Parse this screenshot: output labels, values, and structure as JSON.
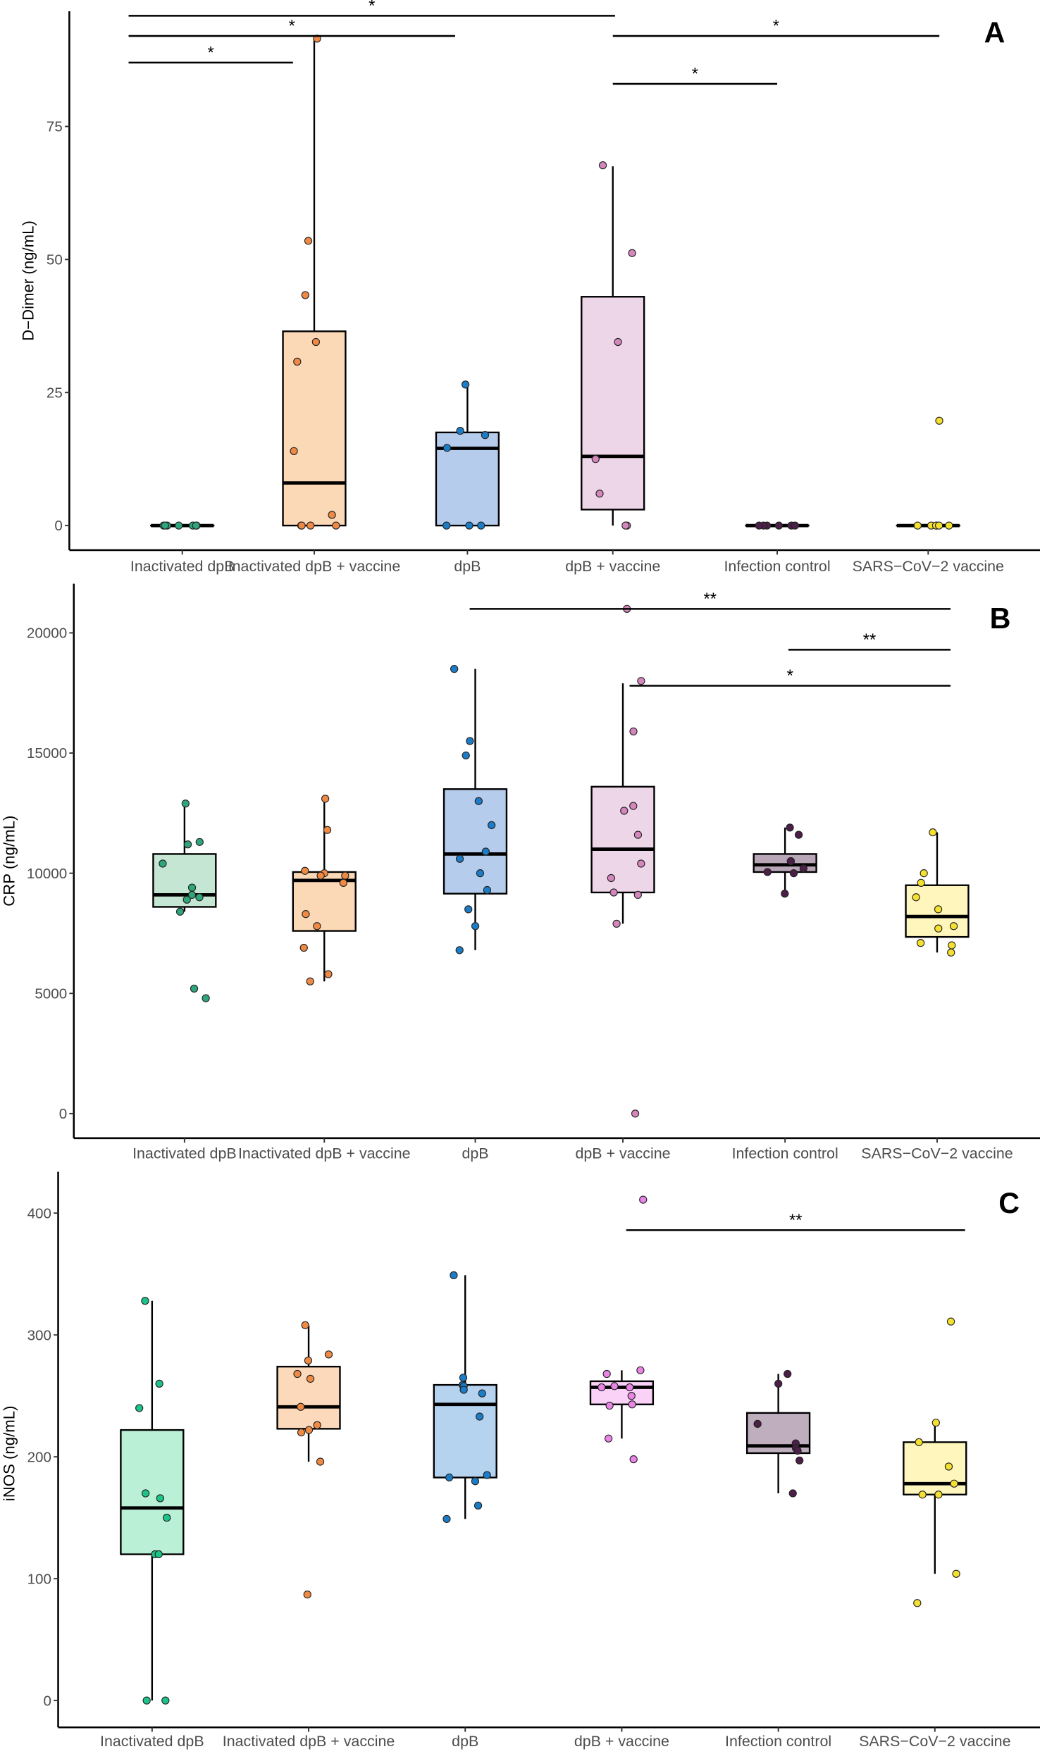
{
  "chart_data": [
    {
      "type": "box",
      "panel_label": "A",
      "ylabel": "D−Dimer (ng/mL)",
      "xlabel": "",
      "ylim": [
        -4,
        97
      ],
      "yticks": [
        0,
        25,
        50,
        75
      ],
      "categories": [
        "Inactivated dpB",
        "Inactivated dpB + vaccine",
        "dpB",
        "dpB + vaccine",
        "Infection control",
        "SARS−CoV−2 vaccine"
      ],
      "fill_colors": [
        "#c4e6d3",
        "#fbd8b6",
        "#b6cced",
        "#eed6e9",
        "#b8a6b6",
        "#fef6bd"
      ],
      "point_colors": [
        "#2ea57a",
        "#ef8a45",
        "#1d7cc6",
        "#d486bd",
        "#4b1f48",
        "#f4e12f"
      ],
      "series": [
        {
          "name": "Inactivated dpB",
          "q1": 0,
          "median": 0,
          "q3": 0,
          "whisker_low": 0,
          "whisker_high": 0,
          "points": [
            0,
            0,
            0,
            0,
            0,
            0,
            0
          ]
        },
        {
          "name": "Inactivated dpB + vaccine",
          "q1": 0,
          "median": 8,
          "q3": 36.5,
          "whisker_low": 0,
          "whisker_high": 91.5,
          "points": [
            91.5,
            53.5,
            43.3,
            34.5,
            30.8,
            14,
            2,
            0,
            0,
            0,
            0
          ]
        },
        {
          "name": "dpB",
          "q1": 0,
          "median": 14.5,
          "q3": 17.5,
          "whisker_low": 0,
          "whisker_high": 26.5,
          "points": [
            26.5,
            17.8,
            17,
            14.6,
            0,
            0,
            0
          ]
        },
        {
          "name": "dpB + vaccine",
          "q1": 3,
          "median": 13,
          "q3": 43,
          "whisker_low": 0,
          "whisker_high": 67.5,
          "points": [
            67.7,
            51.2,
            34.5,
            12.5,
            6,
            0,
            0
          ]
        },
        {
          "name": "Infection control",
          "q1": 0,
          "median": 0,
          "q3": 0,
          "whisker_low": 0,
          "whisker_high": 0,
          "points": [
            0,
            0,
            0,
            0,
            0,
            0
          ]
        },
        {
          "name": "SARS−CoV−2 vaccine",
          "q1": 0,
          "median": 0,
          "q3": 0,
          "whisker_low": 0,
          "whisker_high": 0,
          "points": [
            19.7,
            0,
            0,
            0,
            0,
            0,
            0
          ]
        }
      ],
      "significance": [
        {
          "from": 0,
          "to": 3,
          "y": 95.8,
          "label": "*"
        },
        {
          "from": 0,
          "to": 2,
          "y": 92,
          "label": "*"
        },
        {
          "from": 0,
          "to": 1,
          "y": 87,
          "label": "*"
        },
        {
          "from": 3,
          "to": 5,
          "y": 92,
          "label": "*"
        },
        {
          "from": 3,
          "to": 4,
          "y": 83,
          "label": "*"
        }
      ]
    },
    {
      "type": "box",
      "panel_label": "B",
      "ylabel": "CRP (ng/mL)",
      "xlabel": "",
      "ylim": [
        -1000,
        22000
      ],
      "yticks": [
        0,
        5000,
        10000,
        15000,
        20000
      ],
      "categories": [
        "Inactivated dpB",
        "Inactivated dpB + vaccine",
        "dpB",
        "dpB + vaccine",
        "Infection control",
        "SARS−CoV−2 vaccine"
      ],
      "fill_colors": [
        "#c4e6d3",
        "#fbd8b6",
        "#b6cced",
        "#eed6e9",
        "#b8a6b6",
        "#fef6bd"
      ],
      "point_colors": [
        "#2ea57a",
        "#ef8a45",
        "#1d7cc6",
        "#d486bd",
        "#4b1f48",
        "#f4e12f"
      ],
      "series": [
        {
          "name": "Inactivated dpB",
          "q1": 8600,
          "median": 9100,
          "q3": 10800,
          "whisker_low": 8400,
          "whisker_high": 12900,
          "points": [
            12900,
            11200,
            11300,
            10400,
            9400,
            9100,
            9000,
            8900,
            8400,
            5200,
            4800
          ]
        },
        {
          "name": "Inactivated dpB + vaccine",
          "q1": 7600,
          "median": 9700,
          "q3": 10050,
          "whisker_low": 5500,
          "whisker_high": 13100,
          "points": [
            13100,
            11800,
            10100,
            10000,
            9900,
            9900,
            9600,
            8300,
            7800,
            6900,
            5800,
            5500
          ]
        },
        {
          "name": "dpB",
          "q1": 9150,
          "median": 10800,
          "q3": 13500,
          "whisker_low": 6800,
          "whisker_high": 18500,
          "points": [
            18500,
            15500,
            14900,
            13000,
            12000,
            10900,
            10600,
            10000,
            9300,
            8500,
            7800,
            6800
          ]
        },
        {
          "name": "dpB + vaccine",
          "q1": 9200,
          "median": 11000,
          "q3": 13600,
          "whisker_low": 7900,
          "whisker_high": 17900,
          "points": [
            21000,
            18000,
            15900,
            12800,
            12600,
            11600,
            10400,
            9800,
            9200,
            9100,
            7900,
            0
          ]
        },
        {
          "name": "Infection control",
          "q1": 10050,
          "median": 10350,
          "q3": 10800,
          "whisker_low": 9150,
          "whisker_high": 11900,
          "points": [
            11900,
            11600,
            10500,
            10500,
            10200,
            10000,
            10050,
            9150
          ]
        },
        {
          "name": "SARS−CoV−2 vaccine",
          "q1": 7350,
          "median": 8200,
          "q3": 9500,
          "whisker_low": 6700,
          "whisker_high": 11700,
          "points": [
            11700,
            10000,
            9600,
            9000,
            8500,
            7800,
            7700,
            7100,
            7000,
            6700
          ]
        }
      ],
      "significance": [
        {
          "from": 2,
          "to": 5,
          "y": 21000,
          "label": "**"
        },
        {
          "from": 4,
          "to": 5,
          "y": 19300,
          "label": "**"
        },
        {
          "from": 3,
          "to": 5,
          "y": 17800,
          "label": "*"
        }
      ]
    },
    {
      "type": "box",
      "panel_label": "C",
      "ylabel": "iNOS (ng/mL)",
      "xlabel": "",
      "ylim": [
        -22,
        435
      ],
      "yticks": [
        0,
        100,
        200,
        300,
        400
      ],
      "categories": [
        "Inactivated dpB",
        "Inactivated dpB + vaccine",
        "dpB",
        "dpB + vaccine",
        "Infection control",
        "SARS−CoV−2 vaccine"
      ],
      "fill_colors": [
        "#b9f0d6",
        "#fcd9bb",
        "#b5d2ef",
        "#fad2f7",
        "#bfaebd",
        "#fef6bd"
      ],
      "point_colors": [
        "#1cc489",
        "#ef8a45",
        "#1d7cc6",
        "#ea84e6",
        "#4b1f48",
        "#f4e12f"
      ],
      "series": [
        {
          "name": "Inactivated dpB",
          "q1": 120,
          "median": 158,
          "q3": 222,
          "whisker_low": 0,
          "whisker_high": 328,
          "points": [
            328,
            260,
            240,
            170,
            166,
            150,
            120,
            120,
            0,
            0
          ]
        },
        {
          "name": "Inactivated dpB + vaccine",
          "q1": 223,
          "median": 241,
          "q3": 274,
          "whisker_low": 196,
          "whisker_high": 308,
          "points": [
            308,
            284,
            279,
            268,
            264,
            241,
            226,
            222,
            220,
            196,
            87
          ]
        },
        {
          "name": "dpB",
          "q1": 183,
          "median": 243,
          "q3": 259,
          "whisker_low": 149,
          "whisker_high": 349,
          "points": [
            349,
            265,
            259,
            258,
            255,
            252,
            233,
            185,
            183,
            180,
            160,
            149
          ]
        },
        {
          "name": "dpB + vaccine",
          "q1": 243,
          "median": 257,
          "q3": 262,
          "whisker_low": 215,
          "whisker_high": 271,
          "points": [
            411,
            271,
            268,
            258,
            257,
            257,
            250,
            243,
            242,
            215,
            198
          ]
        },
        {
          "name": "Infection control",
          "q1": 203,
          "median": 209,
          "q3": 236,
          "whisker_low": 170,
          "whisker_high": 268,
          "points": [
            268,
            260,
            227,
            211,
            207,
            205,
            197,
            170
          ]
        },
        {
          "name": "SARS−CoV−2 vaccine",
          "q1": 169,
          "median": 178,
          "q3": 212,
          "whisker_low": 104,
          "whisker_high": 228,
          "points": [
            311,
            228,
            212,
            192,
            178,
            169,
            169,
            104,
            80
          ]
        }
      ],
      "significance": [
        {
          "from": 3,
          "to": 5,
          "y": 386,
          "label": "**"
        }
      ]
    }
  ]
}
